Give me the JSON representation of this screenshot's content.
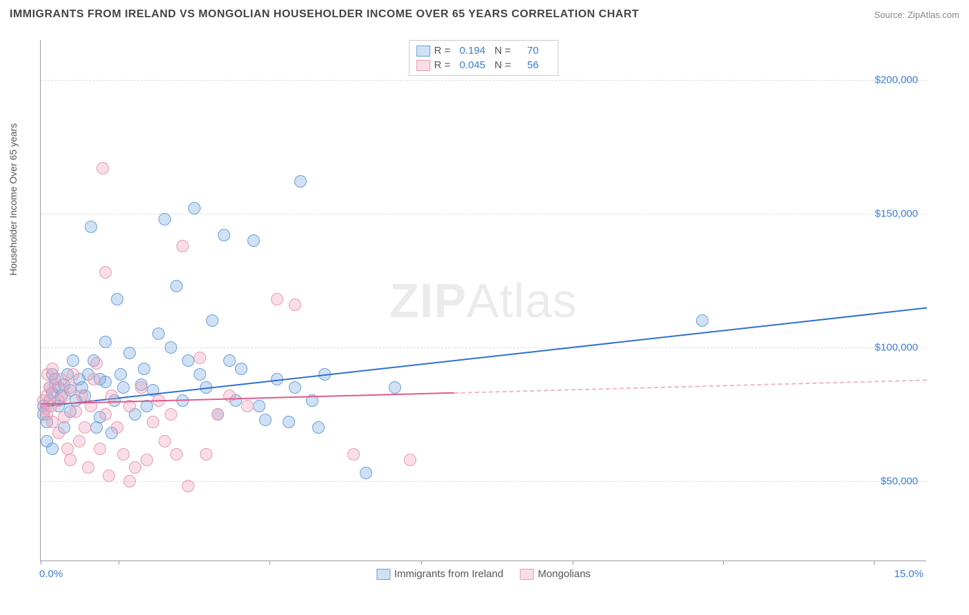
{
  "title": "IMMIGRANTS FROM IRELAND VS MONGOLIAN HOUSEHOLDER INCOME OVER 65 YEARS CORRELATION CHART",
  "source_prefix": "Source: ",
  "source_name": "ZipAtlas.com",
  "watermark_bold": "ZIP",
  "watermark_rest": "Atlas",
  "chart": {
    "type": "scatter",
    "background_color": "#ffffff",
    "grid_color": "#dddddd",
    "axis_color": "#999999",
    "x_axis": {
      "label_left": "0.0%",
      "label_right": "15.0%",
      "min": 0.0,
      "max": 15.0,
      "tick_positions_pct": [
        0,
        8.8,
        25.8,
        42.9,
        60.0,
        77.0,
        94.0
      ]
    },
    "y_axis": {
      "title": "Householder Income Over 65 years",
      "min": 20000,
      "max": 215000,
      "ticks": [
        {
          "value": 50000,
          "label": "$50,000"
        },
        {
          "value": 100000,
          "label": "$100,000"
        },
        {
          "value": 150000,
          "label": "$150,000"
        },
        {
          "value": 200000,
          "label": "$200,000"
        }
      ],
      "tick_color": "#3b7dd8",
      "tick_fontsize": 15
    },
    "series": [
      {
        "key": "ireland",
        "label": "Immigrants from Ireland",
        "marker_fill": "rgba(120,170,225,0.35)",
        "marker_stroke": "#6b9fd6",
        "marker_radius": 9,
        "trend_color": "#2d6fd0",
        "trend_start": {
          "x": 0.0,
          "y": 78000
        },
        "trend_end": {
          "x": 15.0,
          "y": 115000
        },
        "trend_solid_until_x": 15.0,
        "stats": {
          "R": "0.194",
          "N": "70"
        },
        "points": [
          {
            "x": 0.05,
            "y": 78000
          },
          {
            "x": 0.05,
            "y": 75000
          },
          {
            "x": 0.1,
            "y": 72000
          },
          {
            "x": 0.1,
            "y": 65000
          },
          {
            "x": 0.15,
            "y": 85000
          },
          {
            "x": 0.15,
            "y": 80000
          },
          {
            "x": 0.2,
            "y": 83000
          },
          {
            "x": 0.2,
            "y": 62000
          },
          {
            "x": 0.2,
            "y": 90000
          },
          {
            "x": 0.25,
            "y": 88000
          },
          {
            "x": 0.3,
            "y": 85000
          },
          {
            "x": 0.3,
            "y": 78000
          },
          {
            "x": 0.35,
            "y": 82000
          },
          {
            "x": 0.4,
            "y": 86000
          },
          {
            "x": 0.4,
            "y": 70000
          },
          {
            "x": 0.45,
            "y": 90000
          },
          {
            "x": 0.5,
            "y": 84000
          },
          {
            "x": 0.5,
            "y": 76000
          },
          {
            "x": 0.55,
            "y": 95000
          },
          {
            "x": 0.6,
            "y": 80000
          },
          {
            "x": 0.65,
            "y": 88000
          },
          {
            "x": 0.7,
            "y": 85000
          },
          {
            "x": 0.75,
            "y": 82000
          },
          {
            "x": 0.8,
            "y": 90000
          },
          {
            "x": 0.85,
            "y": 145000
          },
          {
            "x": 0.9,
            "y": 95000
          },
          {
            "x": 0.95,
            "y": 70000
          },
          {
            "x": 1.0,
            "y": 88000
          },
          {
            "x": 1.0,
            "y": 74000
          },
          {
            "x": 1.1,
            "y": 87000
          },
          {
            "x": 1.1,
            "y": 102000
          },
          {
            "x": 1.2,
            "y": 68000
          },
          {
            "x": 1.25,
            "y": 80000
          },
          {
            "x": 1.3,
            "y": 118000
          },
          {
            "x": 1.35,
            "y": 90000
          },
          {
            "x": 1.4,
            "y": 85000
          },
          {
            "x": 1.5,
            "y": 98000
          },
          {
            "x": 1.6,
            "y": 75000
          },
          {
            "x": 1.7,
            "y": 86000
          },
          {
            "x": 1.75,
            "y": 92000
          },
          {
            "x": 1.8,
            "y": 78000
          },
          {
            "x": 1.9,
            "y": 84000
          },
          {
            "x": 2.0,
            "y": 105000
          },
          {
            "x": 2.1,
            "y": 148000
          },
          {
            "x": 2.2,
            "y": 100000
          },
          {
            "x": 2.3,
            "y": 123000
          },
          {
            "x": 2.4,
            "y": 80000
          },
          {
            "x": 2.5,
            "y": 95000
          },
          {
            "x": 2.6,
            "y": 152000
          },
          {
            "x": 2.7,
            "y": 90000
          },
          {
            "x": 2.8,
            "y": 85000
          },
          {
            "x": 2.9,
            "y": 110000
          },
          {
            "x": 3.0,
            "y": 75000
          },
          {
            "x": 3.1,
            "y": 142000
          },
          {
            "x": 3.2,
            "y": 95000
          },
          {
            "x": 3.3,
            "y": 80000
          },
          {
            "x": 3.4,
            "y": 92000
          },
          {
            "x": 3.6,
            "y": 140000
          },
          {
            "x": 3.7,
            "y": 78000
          },
          {
            "x": 3.8,
            "y": 73000
          },
          {
            "x": 4.0,
            "y": 88000
          },
          {
            "x": 4.2,
            "y": 72000
          },
          {
            "x": 4.3,
            "y": 85000
          },
          {
            "x": 4.4,
            "y": 162000
          },
          {
            "x": 4.6,
            "y": 80000
          },
          {
            "x": 4.7,
            "y": 70000
          },
          {
            "x": 4.8,
            "y": 90000
          },
          {
            "x": 5.5,
            "y": 53000
          },
          {
            "x": 6.0,
            "y": 85000
          },
          {
            "x": 11.2,
            "y": 110000
          }
        ]
      },
      {
        "key": "mongolian",
        "label": "Mongolians",
        "marker_fill": "rgba(240,160,185,0.35)",
        "marker_stroke": "#e89ab2",
        "marker_radius": 9,
        "trend_color": "#e05a87",
        "trend_start": {
          "x": 0.0,
          "y": 79000
        },
        "trend_end": {
          "x": 15.0,
          "y": 88000
        },
        "trend_solid_until_x": 7.0,
        "stats": {
          "R": "0.045",
          "N": "56"
        },
        "points": [
          {
            "x": 0.05,
            "y": 80000
          },
          {
            "x": 0.08,
            "y": 77000
          },
          {
            "x": 0.1,
            "y": 82000
          },
          {
            "x": 0.1,
            "y": 75000
          },
          {
            "x": 0.12,
            "y": 90000
          },
          {
            "x": 0.15,
            "y": 85000
          },
          {
            "x": 0.18,
            "y": 78000
          },
          {
            "x": 0.2,
            "y": 72000
          },
          {
            "x": 0.2,
            "y": 92000
          },
          {
            "x": 0.25,
            "y": 86000
          },
          {
            "x": 0.3,
            "y": 80000
          },
          {
            "x": 0.3,
            "y": 68000
          },
          {
            "x": 0.35,
            "y": 88000
          },
          {
            "x": 0.4,
            "y": 82000
          },
          {
            "x": 0.4,
            "y": 74000
          },
          {
            "x": 0.45,
            "y": 62000
          },
          {
            "x": 0.5,
            "y": 85000
          },
          {
            "x": 0.5,
            "y": 58000
          },
          {
            "x": 0.55,
            "y": 90000
          },
          {
            "x": 0.6,
            "y": 76000
          },
          {
            "x": 0.65,
            "y": 65000
          },
          {
            "x": 0.7,
            "y": 82000
          },
          {
            "x": 0.75,
            "y": 70000
          },
          {
            "x": 0.8,
            "y": 55000
          },
          {
            "x": 0.85,
            "y": 78000
          },
          {
            "x": 0.9,
            "y": 88000
          },
          {
            "x": 0.95,
            "y": 94000
          },
          {
            "x": 1.0,
            "y": 62000
          },
          {
            "x": 1.05,
            "y": 167000
          },
          {
            "x": 1.1,
            "y": 75000
          },
          {
            "x": 1.1,
            "y": 128000
          },
          {
            "x": 1.15,
            "y": 52000
          },
          {
            "x": 1.2,
            "y": 82000
          },
          {
            "x": 1.3,
            "y": 70000
          },
          {
            "x": 1.4,
            "y": 60000
          },
          {
            "x": 1.5,
            "y": 78000
          },
          {
            "x": 1.5,
            "y": 50000
          },
          {
            "x": 1.6,
            "y": 55000
          },
          {
            "x": 1.7,
            "y": 85000
          },
          {
            "x": 1.8,
            "y": 58000
          },
          {
            "x": 1.9,
            "y": 72000
          },
          {
            "x": 2.0,
            "y": 80000
          },
          {
            "x": 2.1,
            "y": 65000
          },
          {
            "x": 2.2,
            "y": 75000
          },
          {
            "x": 2.3,
            "y": 60000
          },
          {
            "x": 2.4,
            "y": 138000
          },
          {
            "x": 2.5,
            "y": 48000
          },
          {
            "x": 2.7,
            "y": 96000
          },
          {
            "x": 2.8,
            "y": 60000
          },
          {
            "x": 3.0,
            "y": 75000
          },
          {
            "x": 3.2,
            "y": 82000
          },
          {
            "x": 3.5,
            "y": 78000
          },
          {
            "x": 4.0,
            "y": 118000
          },
          {
            "x": 4.3,
            "y": 116000
          },
          {
            "x": 5.3,
            "y": 60000
          },
          {
            "x": 6.25,
            "y": 58000
          }
        ]
      }
    ],
    "legend_stats": {
      "R_label": "R  =",
      "N_label": "N  ="
    }
  }
}
